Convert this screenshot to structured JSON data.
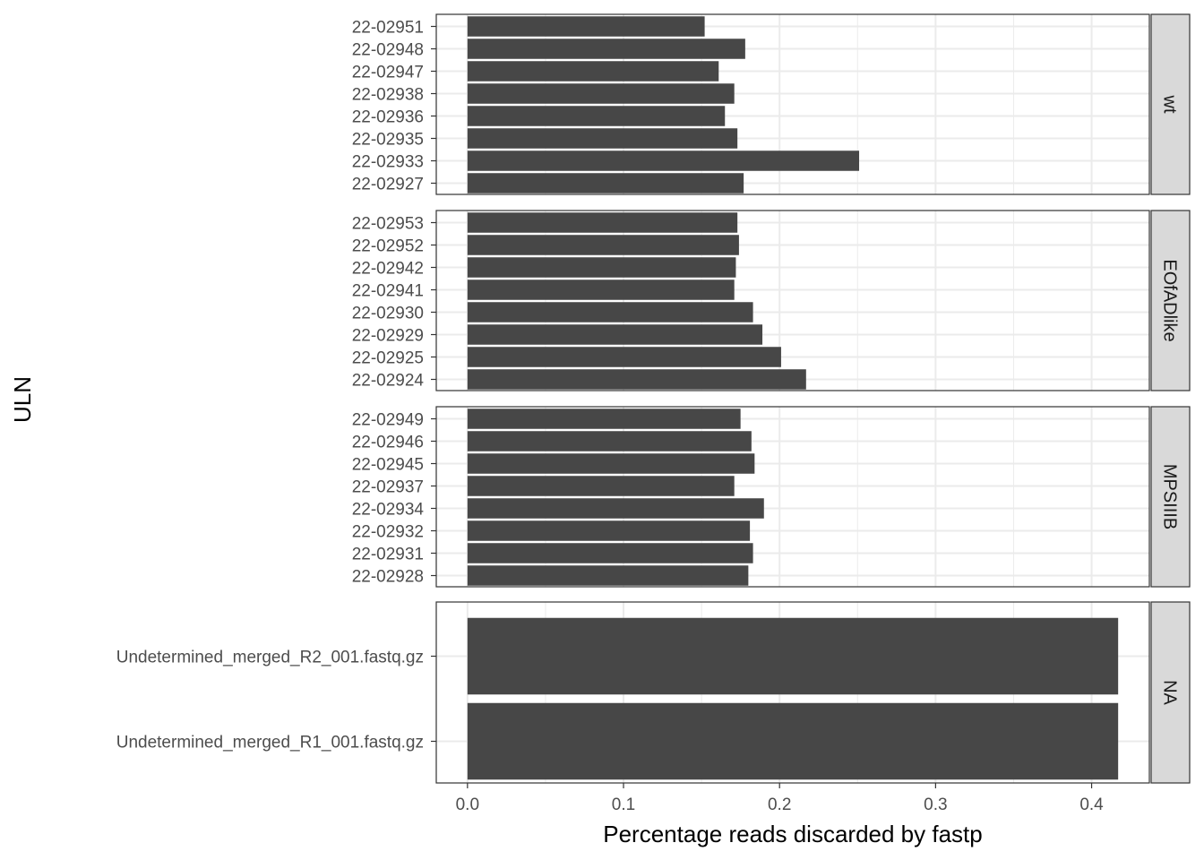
{
  "chart_data": {
    "type": "bar",
    "orientation": "horizontal",
    "faceted": true,
    "xlabel": "Percentage reads discarded by fastp",
    "ylabel": "ULN",
    "xlim": [
      -0.02,
      0.437
    ],
    "xticks": [
      {
        "value": 0.0,
        "label": "0.0"
      },
      {
        "value": 0.1,
        "label": "0.1"
      },
      {
        "value": 0.2,
        "label": "0.2"
      },
      {
        "value": 0.3,
        "label": "0.3"
      },
      {
        "value": 0.4,
        "label": "0.4"
      }
    ],
    "grid": true,
    "bar_color": "#474747",
    "panels": [
      {
        "strip": "wt",
        "categories": [
          "22-02951",
          "22-02948",
          "22-02947",
          "22-02938",
          "22-02936",
          "22-02935",
          "22-02933",
          "22-02927"
        ],
        "values": [
          0.152,
          0.178,
          0.161,
          0.171,
          0.165,
          0.173,
          0.251,
          0.177
        ]
      },
      {
        "strip": "EOfADlike",
        "categories": [
          "22-02953",
          "22-02952",
          "22-02942",
          "22-02941",
          "22-02930",
          "22-02929",
          "22-02925",
          "22-02924"
        ],
        "values": [
          0.173,
          0.174,
          0.172,
          0.171,
          0.183,
          0.189,
          0.201,
          0.217
        ]
      },
      {
        "strip": "MPSIIIB",
        "categories": [
          "22-02949",
          "22-02946",
          "22-02945",
          "22-02937",
          "22-02934",
          "22-02932",
          "22-02931",
          "22-02928"
        ],
        "values": [
          0.175,
          0.182,
          0.184,
          0.171,
          0.19,
          0.181,
          0.183,
          0.18
        ]
      },
      {
        "strip": "NA",
        "categories": [
          "Undetermined_merged_R2_001.fastq.gz",
          "Undetermined_merged_R1_001.fastq.gz"
        ],
        "values": [
          0.417,
          0.417
        ]
      }
    ]
  }
}
